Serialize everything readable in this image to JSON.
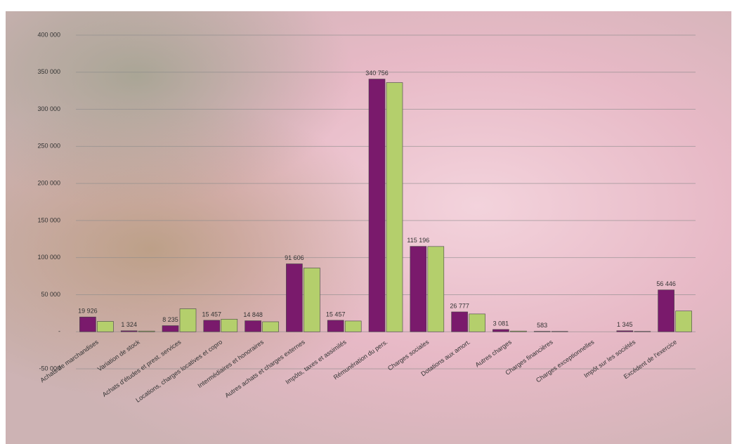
{
  "chart_data": {
    "type": "bar",
    "categories": [
      "Achats de marchandises",
      "Variation de stock",
      "Achats d'études et prest. services",
      "Locations, charges locatives et copro",
      "Intermédiaires et honoraires",
      "Autres achats et charges externes",
      "Impôts, taxes et assimilés",
      "Rémunération du pers.",
      "Charges sociales",
      "Dotations aux amort.",
      "Autres charges",
      "Charges financières",
      "Charges exceptionnelles",
      "Impôt sur les sociétés",
      "Excédent de l'exercice"
    ],
    "series": [
      {
        "color": "#7a1a6c",
        "values": [
          19926,
          1324,
          8235,
          15457,
          14848,
          91606,
          15457,
          340756,
          115196,
          26777,
          3081,
          583,
          null,
          1345,
          56446
        ],
        "value_labels": [
          "19 926",
          "1 324",
          "8 235",
          "15 457",
          "14 848",
          "91 606",
          "15 457",
          "340 756",
          "115 196",
          "26 777",
          "3 081",
          "583",
          null,
          "1 345",
          "56 446"
        ]
      },
      {
        "color": "#b4cf6c",
        "values": [
          14000,
          1000,
          31000,
          17000,
          13500,
          86000,
          14500,
          336000,
          115000,
          24000,
          1000,
          500,
          null,
          500,
          28000
        ]
      }
    ],
    "ylim": [
      -50000,
      400000
    ],
    "yticks": [
      {
        "value": -50000,
        "label": "-50 000"
      },
      {
        "value": 0,
        "label": "-"
      },
      {
        "value": 50000,
        "label": "50 000"
      },
      {
        "value": 100000,
        "label": "100 000"
      },
      {
        "value": 150000,
        "label": "150 000"
      },
      {
        "value": 200000,
        "label": "200 000"
      },
      {
        "value": 250000,
        "label": "250 000"
      },
      {
        "value": 300000,
        "label": "300 000"
      },
      {
        "value": 350000,
        "label": "350 000"
      },
      {
        "value": 400000,
        "label": "400 000"
      }
    ],
    "grid": true
  }
}
